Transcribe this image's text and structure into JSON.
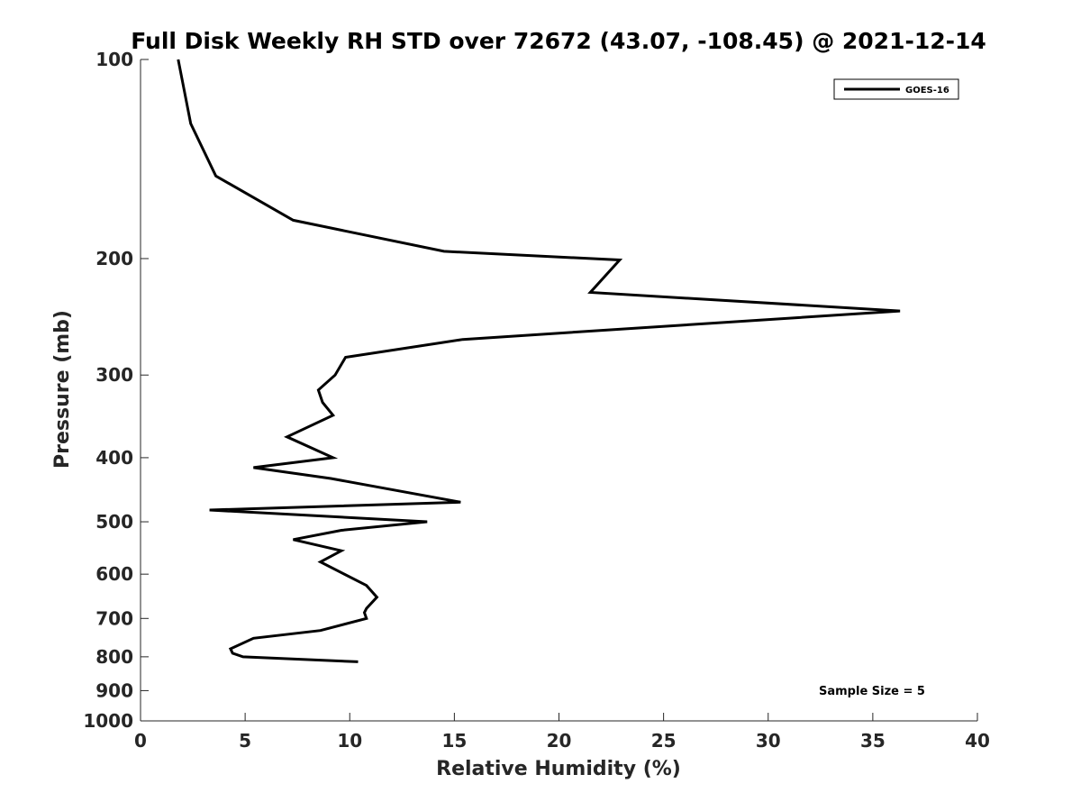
{
  "chart_data": {
    "type": "line",
    "title": "Full Disk Weekly RH STD over 72672 (43.07, -108.45) @ 2021-12-14",
    "xlabel": "Relative Humidity (%)",
    "ylabel": "Pressure (mb)",
    "xlim": [
      0,
      40
    ],
    "ylim": [
      100,
      1000
    ],
    "yscale": "log",
    "y_reversed": true,
    "x_ticks": [
      "0",
      "5",
      "10",
      "15",
      "20",
      "25",
      "30",
      "35",
      "40"
    ],
    "y_ticks": [
      "100",
      "200",
      "300",
      "400",
      "500",
      "600",
      "700",
      "800",
      "900",
      "1000"
    ],
    "grid": false,
    "legend_position": "top-right",
    "annotation": "Sample Size = 5",
    "series": [
      {
        "name": "GOES-16",
        "color": "#000000",
        "x": [
          1.8,
          2.4,
          3.6,
          7.3,
          14.5,
          22.9,
          21.5,
          36.3,
          15.4,
          9.8,
          9.3,
          8.5,
          8.7,
          9.2,
          7.0,
          9.2,
          5.4,
          9.1,
          15.3,
          3.3,
          13.7,
          9.6,
          7.3,
          9.6,
          8.6,
          10.8,
          11.3,
          10.8,
          10.7,
          10.8,
          8.6,
          5.4,
          4.3,
          4.4,
          4.9,
          10.4
        ],
        "y": [
          100,
          125,
          150,
          175,
          195,
          201,
          225,
          240,
          265,
          282,
          300,
          316,
          330,
          345,
          372,
          400,
          414,
          430,
          467,
          480,
          500,
          515,
          532,
          553,
          575,
          624,
          650,
          676,
          686,
          700,
          730,
          750,
          778,
          790,
          800,
          814
        ]
      }
    ]
  }
}
